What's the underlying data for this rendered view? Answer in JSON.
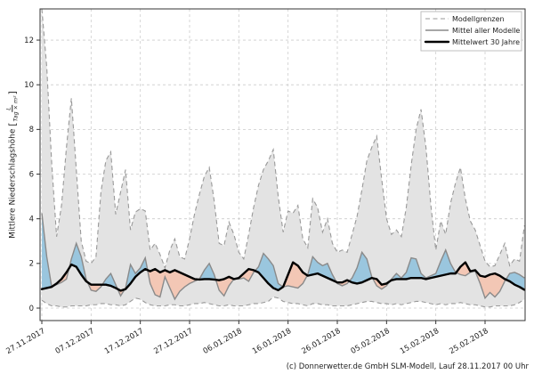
{
  "page": {
    "background": "#ffffff"
  },
  "ylabel": {
    "text": "Mittlere Niederschlagshöhe ",
    "bracket_open": "[",
    "unit_numerator": "L",
    "unit_denominator": "Tag × m²",
    "bracket_close": "]"
  },
  "footer": {
    "credit": "(c) Donnerwetter.de GmbH SLM-Modell, Lauf 28.11.2017 00 Uhr"
  },
  "legend": [
    {
      "label": "Modellgrenzen",
      "style": "dashed-gray"
    },
    {
      "label": "Mittel aller Modelle",
      "style": "solid-gray"
    },
    {
      "label": "Mittelwert 30 Jahre",
      "style": "thick-black"
    }
  ],
  "colors": {
    "band": "#e3e3e3",
    "envelope_stroke": "#999999",
    "model_mean_stroke": "#8a8a8a",
    "mean30_stroke": "#000000",
    "above": "#9ac6de",
    "below": "#f3c7b5",
    "grid": "#cccccc"
  },
  "chart_data": {
    "type": "line",
    "title": "",
    "xlabel": "",
    "ylabel": "Mittlere Niederschlagshöhe [L/(Tag × m²)]",
    "x_unit": "days since 27.11.2017 (1 point per day)",
    "x_tick_days": [
      0,
      10,
      20,
      30,
      40,
      50,
      60,
      70,
      80,
      90
    ],
    "x_tick_labels": [
      "27.11.2017",
      "07.12.2017",
      "17.12.2017",
      "27.12.2017",
      "06.01.2018",
      "16.01.2018",
      "26.01.2018",
      "05.02.2018",
      "15.02.2018",
      "25.02.2018"
    ],
    "yticks": [
      0,
      2,
      4,
      6,
      8,
      10,
      12
    ],
    "ylim": [
      0,
      13.4
    ],
    "grid": true,
    "legend_position": "upper right",
    "series": [
      {
        "name": "Modellgrenzen (Maximum)",
        "style": "dashed",
        "color": "#999999",
        "values": [
          13.4,
          10.8,
          6.5,
          3.2,
          4.6,
          7.2,
          9.4,
          6.2,
          3.0,
          2.1,
          2.0,
          2.3,
          5.2,
          6.6,
          7.0,
          4.2,
          5.2,
          6.2,
          3.5,
          4.3,
          4.45,
          4.35,
          2.6,
          2.9,
          2.4,
          1.8,
          2.6,
          3.1,
          2.3,
          2.2,
          3.1,
          4.2,
          5.1,
          5.9,
          6.3,
          4.8,
          2.9,
          2.8,
          3.85,
          3.3,
          2.5,
          2.2,
          3.3,
          4.5,
          5.5,
          6.2,
          6.6,
          7.1,
          5.0,
          3.4,
          4.35,
          4.25,
          4.6,
          3.1,
          2.7,
          4.9,
          4.5,
          3.4,
          4.0,
          2.9,
          2.5,
          2.6,
          2.5,
          3.3,
          4.1,
          5.3,
          6.6,
          7.2,
          7.7,
          5.8,
          4.0,
          3.3,
          3.5,
          3.2,
          4.5,
          6.4,
          8.0,
          8.9,
          7.2,
          4.6,
          2.6,
          3.9,
          3.3,
          4.7,
          5.6,
          6.3,
          4.9,
          3.9,
          3.5,
          2.8,
          2.1,
          1.85,
          1.9,
          2.4,
          2.9,
          1.9,
          2.2,
          2.1,
          3.7
        ]
      },
      {
        "name": "Modellgrenzen (Minimum)",
        "style": "dashed",
        "color": "#999999",
        "values": [
          0.35,
          0.2,
          0.1,
          0.1,
          0.05,
          0.05,
          0.1,
          0.1,
          0.1,
          0.1,
          0.15,
          0.15,
          0.2,
          0.2,
          0.15,
          0.15,
          0.1,
          0.15,
          0.3,
          0.45,
          0.4,
          0.25,
          0.15,
          0.1,
          0.1,
          0.1,
          0.15,
          0.15,
          0.1,
          0.1,
          0.15,
          0.2,
          0.2,
          0.25,
          0.2,
          0.15,
          0.1,
          0.1,
          0.15,
          0.1,
          0.1,
          0.1,
          0.15,
          0.2,
          0.2,
          0.25,
          0.3,
          0.5,
          0.45,
          0.3,
          0.25,
          0.2,
          0.2,
          0.15,
          0.1,
          0.2,
          0.2,
          0.15,
          0.15,
          0.1,
          0.1,
          0.1,
          0.1,
          0.15,
          0.2,
          0.25,
          0.3,
          0.3,
          0.25,
          0.2,
          0.2,
          0.15,
          0.2,
          0.15,
          0.2,
          0.25,
          0.3,
          0.3,
          0.25,
          0.2,
          0.15,
          0.2,
          0.15,
          0.2,
          0.2,
          0.25,
          0.2,
          0.15,
          0.15,
          0.1,
          0.05,
          0.05,
          0.1,
          0.1,
          0.1,
          0.1,
          0.15,
          0.25,
          0.4
        ]
      },
      {
        "name": "Mittel aller Modelle",
        "style": "solid",
        "color": "#8a8a8a",
        "values": [
          4.25,
          2.3,
          0.95,
          1.05,
          1.15,
          1.3,
          2.2,
          2.9,
          2.3,
          1.3,
          0.8,
          0.75,
          0.95,
          1.3,
          1.55,
          1.05,
          0.55,
          0.9,
          1.95,
          1.55,
          1.8,
          2.25,
          1.1,
          0.6,
          0.5,
          1.4,
          0.9,
          0.4,
          0.75,
          0.95,
          1.1,
          1.2,
          1.3,
          1.7,
          2.0,
          1.5,
          0.8,
          0.55,
          1.0,
          1.3,
          1.3,
          1.35,
          1.2,
          1.6,
          1.85,
          2.45,
          2.2,
          1.9,
          1.1,
          0.95,
          1.0,
          0.95,
          0.9,
          1.1,
          1.5,
          2.3,
          2.05,
          1.9,
          2.0,
          1.5,
          1.1,
          1.0,
          1.1,
          1.35,
          1.8,
          2.5,
          2.2,
          1.4,
          1.0,
          0.85,
          1.0,
          1.3,
          1.55,
          1.35,
          1.6,
          2.25,
          2.2,
          1.55,
          1.35,
          1.45,
          1.55,
          2.1,
          2.6,
          2.0,
          1.6,
          1.5,
          1.45,
          1.6,
          1.65,
          1.1,
          0.45,
          0.7,
          0.5,
          0.75,
          1.2,
          1.55,
          1.6,
          1.5,
          1.35
        ]
      },
      {
        "name": "Mittelwert 30 Jahre",
        "style": "thick",
        "color": "#000000",
        "values": [
          0.85,
          0.9,
          0.95,
          1.1,
          1.3,
          1.6,
          1.95,
          1.85,
          1.5,
          1.2,
          1.05,
          1.05,
          1.05,
          1.05,
          1.0,
          0.9,
          0.78,
          0.85,
          1.1,
          1.4,
          1.6,
          1.75,
          1.65,
          1.75,
          1.6,
          1.7,
          1.6,
          1.7,
          1.6,
          1.5,
          1.4,
          1.3,
          1.28,
          1.3,
          1.3,
          1.28,
          1.25,
          1.3,
          1.4,
          1.3,
          1.35,
          1.55,
          1.75,
          1.7,
          1.6,
          1.35,
          1.1,
          0.9,
          0.8,
          0.95,
          1.5,
          2.05,
          1.9,
          1.6,
          1.45,
          1.5,
          1.55,
          1.45,
          1.35,
          1.25,
          1.15,
          1.15,
          1.25,
          1.15,
          1.1,
          1.15,
          1.25,
          1.35,
          1.3,
          1.05,
          1.1,
          1.25,
          1.3,
          1.3,
          1.3,
          1.35,
          1.35,
          1.35,
          1.3,
          1.35,
          1.4,
          1.45,
          1.5,
          1.55,
          1.55,
          1.85,
          2.05,
          1.65,
          1.7,
          1.45,
          1.4,
          1.5,
          1.55,
          1.45,
          1.3,
          1.2,
          1.05,
          0.95,
          0.82
        ]
      }
    ],
    "fills": [
      {
        "between": [
          "Modellgrenzen (Maximum)",
          "Modellgrenzen (Minimum)"
        ],
        "color": "#e3e3e3"
      },
      {
        "where": "Mittel aller Modelle > Mittelwert 30 Jahre",
        "color": "#9ac6de"
      },
      {
        "where": "Mittel aller Modelle < Mittelwert 30 Jahre",
        "color": "#f3c7b5"
      }
    ]
  }
}
